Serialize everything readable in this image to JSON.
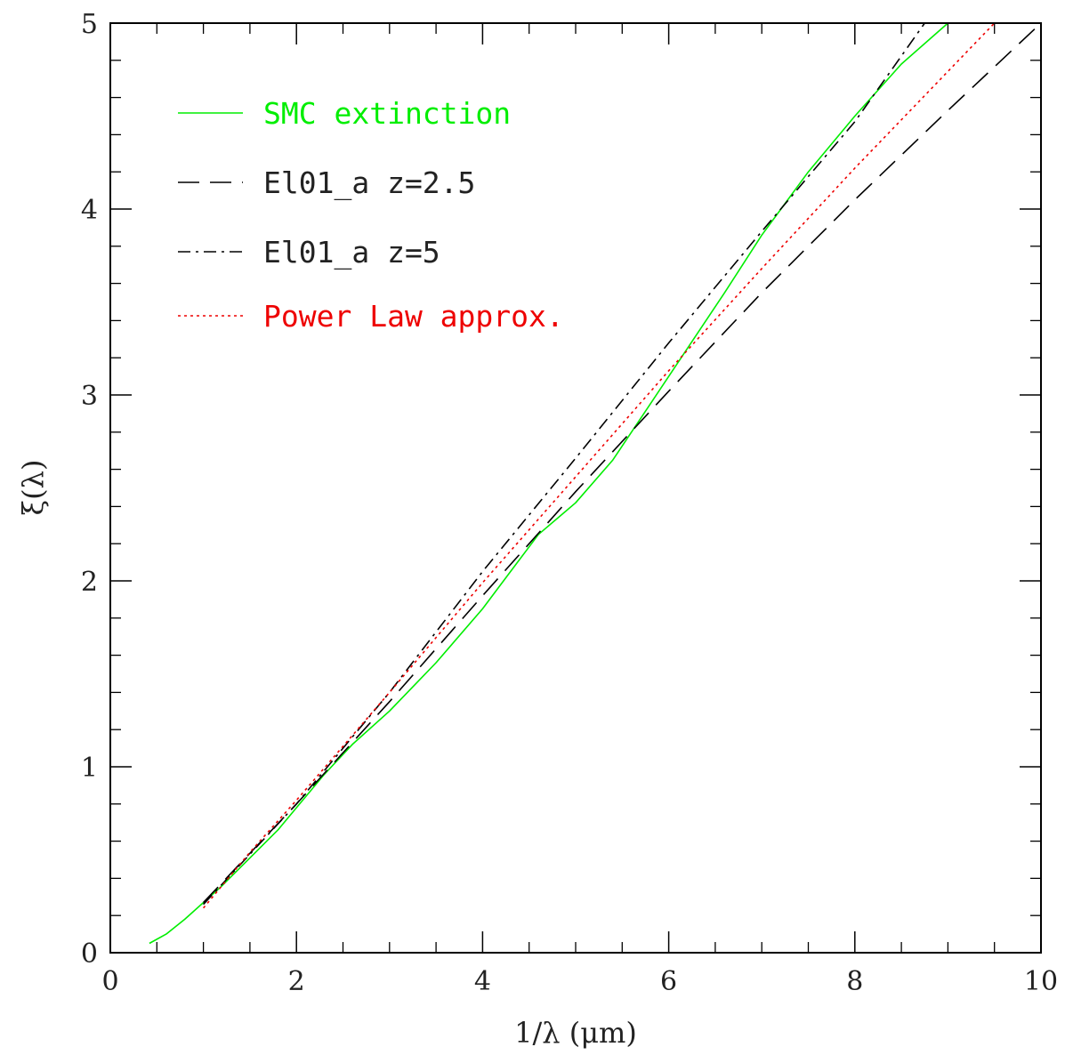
{
  "chart_data": {
    "type": "line",
    "title": "",
    "xlabel": "1/λ (μm)",
    "ylabel": "ξ(λ)",
    "xlim": [
      0,
      10
    ],
    "ylim": [
      0,
      5
    ],
    "x_major_ticks": [
      0,
      2,
      4,
      6,
      8,
      10
    ],
    "x_minor_step": 0.5,
    "y_major_ticks": [
      0,
      1,
      2,
      3,
      4,
      5
    ],
    "y_minor_step": 0.2,
    "grid": false,
    "legend_position": "top-left",
    "series": [
      {
        "name": "SMC extinction",
        "color": "#00ee00",
        "dash": "solid",
        "x": [
          0.42,
          0.6,
          0.8,
          1.0,
          1.2,
          1.5,
          1.8,
          2.0,
          2.3,
          2.6,
          3.0,
          3.5,
          4.0,
          4.3,
          4.6,
          5.0,
          5.4,
          5.8,
          6.2,
          6.6,
          7.0,
          7.5,
          8.0,
          8.5,
          9.0
        ],
        "y": [
          0.05,
          0.1,
          0.18,
          0.27,
          0.36,
          0.51,
          0.66,
          0.78,
          0.96,
          1.12,
          1.3,
          1.56,
          1.85,
          2.05,
          2.25,
          2.42,
          2.65,
          2.95,
          3.25,
          3.55,
          3.86,
          4.2,
          4.5,
          4.78,
          5.0
        ]
      },
      {
        "name": "El01_a z=2.5",
        "color": "#000000",
        "dash": "long-dash",
        "x": [
          1.0,
          2.0,
          3.0,
          4.0,
          5.0,
          6.0,
          7.0,
          8.0,
          9.0,
          10.0
        ],
        "y": [
          0.27,
          0.8,
          1.35,
          1.92,
          2.48,
          3.02,
          3.55,
          4.05,
          4.53,
          5.0
        ]
      },
      {
        "name": "El01_a z=5",
        "color": "#000000",
        "dash": "dot-dash",
        "x": [
          1.0,
          2.0,
          3.0,
          4.0,
          5.0,
          6.0,
          7.0,
          8.0,
          8.75
        ],
        "y": [
          0.26,
          0.8,
          1.4,
          2.05,
          2.66,
          3.28,
          3.88,
          4.47,
          5.0
        ]
      },
      {
        "name": "Power Law approx.",
        "color": "#ee0000",
        "dash": "dotted",
        "x": [
          1.0,
          1.5,
          2.0,
          3.0,
          4.0,
          5.0,
          6.0,
          7.0,
          8.0,
          9.0,
          9.5
        ],
        "y": [
          0.24,
          0.54,
          0.82,
          1.4,
          1.99,
          2.56,
          3.13,
          3.68,
          4.22,
          4.74,
          5.0
        ]
      }
    ]
  }
}
